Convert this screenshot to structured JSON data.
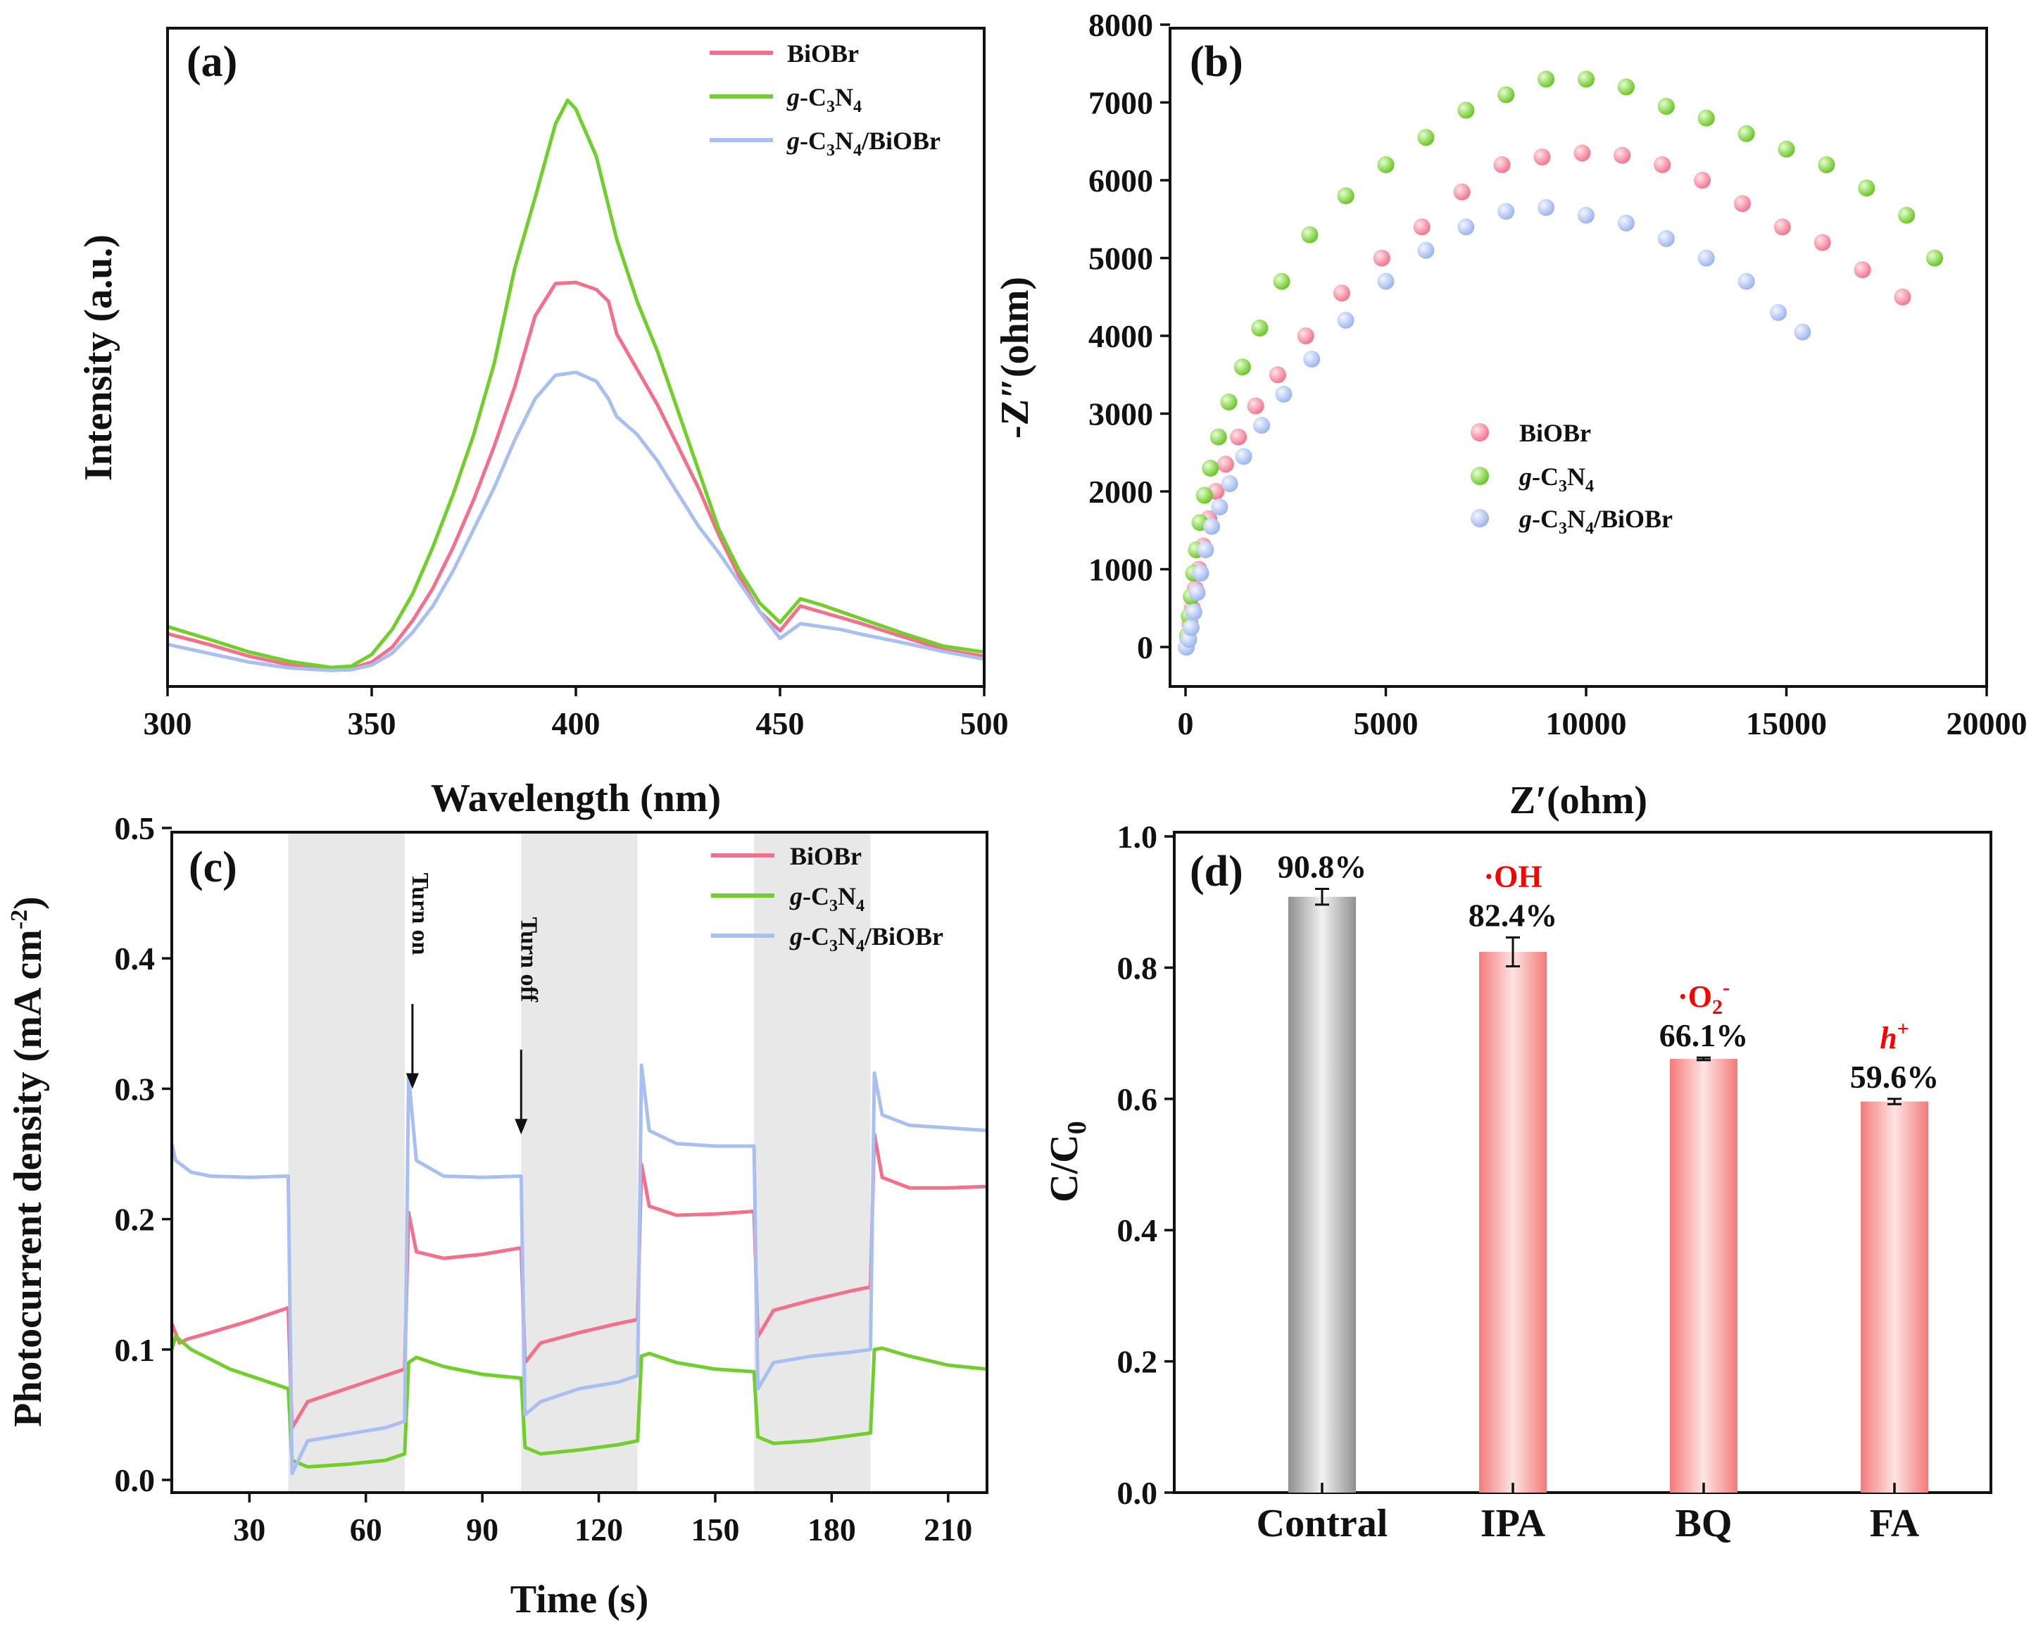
{
  "colors": {
    "biobr": "#f36f8a",
    "gc3n4": "#71cf2b",
    "composite": "#a9bff2",
    "scavenger_label": "#ff0000",
    "light_off_band": "#e8e8e8"
  },
  "legend": {
    "biobr": "BiOBr",
    "gc3n4_prefix": "g",
    "gc3n4_main": "-C",
    "gc3n4_sub1": "3",
    "gc3n4_n": "N",
    "gc3n4_sub2": "4",
    "composite_suffix": "/BiOBr"
  },
  "chart_data": [
    {
      "id": "a",
      "type": "line",
      "panel_label": "(a)",
      "xlabel": "Wavelength (nm)",
      "ylabel": "Intensity (a.u.)",
      "xlim": [
        300,
        500
      ],
      "ylim": [
        0,
        1
      ],
      "x_ticks": [
        "300",
        "350",
        "400",
        "450",
        "500"
      ],
      "y_ticks_shown": false,
      "legend_position": "top-right",
      "series": [
        {
          "name": "BiOBr",
          "x": [
            300,
            310,
            320,
            330,
            340,
            345,
            350,
            355,
            360,
            365,
            370,
            375,
            380,
            385,
            390,
            395,
            400,
            405,
            408,
            410,
            415,
            420,
            425,
            430,
            435,
            440,
            445,
            450,
            455,
            460,
            465,
            470,
            480,
            490,
            500
          ],
          "y": [
            0.063,
            0.045,
            0.025,
            0.01,
            0.003,
            0.004,
            0.015,
            0.04,
            0.085,
            0.14,
            0.21,
            0.29,
            0.38,
            0.48,
            0.6,
            0.655,
            0.657,
            0.645,
            0.625,
            0.57,
            0.51,
            0.45,
            0.38,
            0.31,
            0.23,
            0.16,
            0.1,
            0.068,
            0.11,
            0.1,
            0.09,
            0.08,
            0.058,
            0.036,
            0.025
          ]
        },
        {
          "name": "g-C3N4",
          "x": [
            300,
            310,
            320,
            330,
            340,
            345,
            350,
            355,
            360,
            365,
            370,
            375,
            380,
            385,
            390,
            395,
            398,
            400,
            405,
            410,
            415,
            420,
            425,
            430,
            435,
            440,
            445,
            450,
            455,
            460,
            465,
            470,
            480,
            490,
            500
          ],
          "y": [
            0.075,
            0.054,
            0.032,
            0.016,
            0.006,
            0.008,
            0.028,
            0.07,
            0.13,
            0.21,
            0.3,
            0.4,
            0.52,
            0.68,
            0.8,
            0.925,
            0.965,
            0.95,
            0.87,
            0.73,
            0.625,
            0.54,
            0.44,
            0.34,
            0.24,
            0.17,
            0.115,
            0.082,
            0.122,
            0.112,
            0.1,
            0.088,
            0.064,
            0.042,
            0.032
          ]
        },
        {
          "name": "g-C3N4/BiOBr",
          "x": [
            300,
            310,
            320,
            330,
            340,
            345,
            350,
            355,
            360,
            365,
            370,
            375,
            380,
            385,
            390,
            395,
            400,
            405,
            408,
            410,
            415,
            420,
            425,
            430,
            435,
            440,
            445,
            450,
            455,
            460,
            465,
            470,
            480,
            490,
            500
          ],
          "y": [
            0.045,
            0.03,
            0.015,
            0.005,
            0.001,
            0.002,
            0.01,
            0.03,
            0.065,
            0.11,
            0.17,
            0.24,
            0.31,
            0.39,
            0.46,
            0.5,
            0.505,
            0.49,
            0.46,
            0.43,
            0.4,
            0.355,
            0.3,
            0.245,
            0.2,
            0.15,
            0.1,
            0.055,
            0.08,
            0.075,
            0.07,
            0.062,
            0.048,
            0.033,
            0.02
          ]
        }
      ]
    },
    {
      "id": "b",
      "type": "scatter",
      "panel_label": "(b)",
      "xlabel": "Z′(ohm)",
      "ylabel": "-Z″(ohm)",
      "xlim": [
        -500,
        20500
      ],
      "ylim": [
        -500,
        8000
      ],
      "x_ticks": [
        "0",
        "5000",
        "10000",
        "15000",
        "20000"
      ],
      "y_ticks": [
        "0",
        "1000",
        "2000",
        "3000",
        "4000",
        "5000",
        "6000",
        "7000",
        "8000"
      ],
      "legend_position": "center",
      "series": [
        {
          "name": "BiOBr",
          "x": [
            20,
            60,
            110,
            170,
            240,
            330,
            440,
            580,
            760,
            1000,
            1320,
            1750,
            2300,
            3000,
            3900,
            4900,
            5900,
            6900,
            7900,
            8900,
            9900,
            10900,
            11900,
            12900,
            13900,
            14900,
            15900,
            16900,
            17900
          ],
          "y": [
            0,
            100,
            300,
            500,
            750,
            1000,
            1300,
            1650,
            2000,
            2350,
            2700,
            3100,
            3500,
            4000,
            4550,
            5000,
            5400,
            5850,
            6200,
            6300,
            6350,
            6320,
            6200,
            6000,
            5700,
            5400,
            5200,
            4850,
            4500
          ]
        },
        {
          "name": "g-C3N4",
          "x": [
            20,
            50,
            90,
            140,
            200,
            270,
            360,
            470,
            620,
            820,
            1080,
            1420,
            1850,
            2400,
            3100,
            4000,
            5000,
            6000,
            7000,
            8000,
            9000,
            10000,
            11000,
            12000,
            13000,
            14000,
            15000,
            16000,
            17000,
            18000,
            18700
          ],
          "y": [
            0,
            150,
            400,
            650,
            950,
            1250,
            1600,
            1950,
            2300,
            2700,
            3150,
            3600,
            4100,
            4700,
            5300,
            5800,
            6200,
            6550,
            6900,
            7100,
            7300,
            7300,
            7200,
            6950,
            6800,
            6600,
            6400,
            6200,
            5900,
            5550,
            5000
          ]
        },
        {
          "name": "g-C3N4/BiOBr",
          "x": [
            20,
            80,
            140,
            210,
            290,
            380,
            500,
            650,
            850,
            1100,
            1450,
            1900,
            2450,
            3150,
            4000,
            5000,
            6000,
            7000,
            8000,
            9000,
            10000,
            11000,
            12000,
            13000,
            14000,
            14800,
            15400
          ],
          "y": [
            0,
            100,
            250,
            450,
            700,
            950,
            1250,
            1550,
            1800,
            2100,
            2450,
            2850,
            3250,
            3700,
            4200,
            4700,
            5100,
            5400,
            5600,
            5650,
            5550,
            5450,
            5250,
            5000,
            4700,
            4300,
            4050
          ]
        }
      ]
    },
    {
      "id": "c",
      "type": "line",
      "panel_label": "(c)",
      "xlabel": "Time (s)",
      "ylabel": "Photocurrent density (mA cm",
      "ylabel_sup": "-2",
      "ylabel_close": ")",
      "xlim": [
        10,
        220
      ],
      "ylim": [
        -0.01,
        0.5
      ],
      "x_ticks": [
        "30",
        "60",
        "90",
        "120",
        "150",
        "180",
        "210"
      ],
      "y_ticks": [
        "0.0",
        "0.1",
        "0.2",
        "0.3",
        "0.4",
        "0.5"
      ],
      "dark_intervals": [
        [
          40,
          70
        ],
        [
          100,
          130
        ],
        [
          160,
          190
        ]
      ],
      "annotations": [
        {
          "text": "Turn on",
          "x": 72,
          "arrow_from": 0.365,
          "arrow_to": 0.3
        },
        {
          "text": "Turn off",
          "x": 100,
          "arrow_from": 0.33,
          "arrow_to": 0.265
        }
      ],
      "legend_position": "top-right",
      "series": [
        {
          "name": "BiOBr",
          "segments": [
            {
              "x": [
                10,
                12,
                14,
                20,
                30,
                40
              ],
              "y": [
                0.12,
                0.105,
                0.108,
                0.113,
                0.122,
                0.132
              ]
            },
            {
              "x": [
                40,
                41,
                45,
                55,
                65,
                70
              ],
              "y": [
                0.132,
                0.04,
                0.06,
                0.07,
                0.08,
                0.085
              ]
            },
            {
              "x": [
                70,
                71,
                73,
                80,
                90,
                100
              ],
              "y": [
                0.085,
                0.205,
                0.175,
                0.17,
                0.173,
                0.178
              ]
            },
            {
              "x": [
                100,
                101,
                105,
                115,
                125,
                130
              ],
              "y": [
                0.178,
                0.09,
                0.105,
                0.113,
                0.12,
                0.123
              ]
            },
            {
              "x": [
                130,
                131,
                133,
                140,
                150,
                160
              ],
              "y": [
                0.123,
                0.242,
                0.21,
                0.203,
                0.204,
                0.206
              ]
            },
            {
              "x": [
                160,
                161,
                165,
                175,
                185,
                190
              ],
              "y": [
                0.206,
                0.11,
                0.13,
                0.138,
                0.145,
                0.148
              ]
            },
            {
              "x": [
                190,
                191,
                193,
                200,
                210,
                220
              ],
              "y": [
                0.148,
                0.265,
                0.232,
                0.224,
                0.224,
                0.225
              ]
            }
          ]
        },
        {
          "name": "g-C3N4",
          "segments": [
            {
              "x": [
                10,
                11,
                15,
                25,
                35,
                40
              ],
              "y": [
                0.1,
                0.11,
                0.1,
                0.085,
                0.075,
                0.07
              ]
            },
            {
              "x": [
                40,
                41,
                45,
                55,
                65,
                70
              ],
              "y": [
                0.07,
                0.015,
                0.01,
                0.012,
                0.015,
                0.02
              ]
            },
            {
              "x": [
                70,
                71,
                73,
                80,
                90,
                100
              ],
              "y": [
                0.02,
                0.09,
                0.094,
                0.087,
                0.081,
                0.078
              ]
            },
            {
              "x": [
                100,
                101,
                105,
                115,
                125,
                130
              ],
              "y": [
                0.078,
                0.025,
                0.02,
                0.023,
                0.027,
                0.03
              ]
            },
            {
              "x": [
                130,
                131,
                133,
                140,
                150,
                160
              ],
              "y": [
                0.03,
                0.095,
                0.097,
                0.09,
                0.085,
                0.083
              ]
            },
            {
              "x": [
                160,
                161,
                165,
                175,
                185,
                190
              ],
              "y": [
                0.083,
                0.033,
                0.028,
                0.03,
                0.034,
                0.036
              ]
            },
            {
              "x": [
                190,
                191,
                193,
                200,
                210,
                220
              ],
              "y": [
                0.036,
                0.1,
                0.101,
                0.095,
                0.088,
                0.085
              ]
            }
          ]
        },
        {
          "name": "g-C3N4/BiOBr",
          "segments": [
            {
              "x": [
                10,
                11,
                15,
                20,
                30,
                40
              ],
              "y": [
                0.258,
                0.245,
                0.236,
                0.233,
                0.232,
                0.233
              ]
            },
            {
              "x": [
                40,
                41,
                45,
                55,
                65,
                70
              ],
              "y": [
                0.233,
                0.005,
                0.03,
                0.035,
                0.04,
                0.045
              ]
            },
            {
              "x": [
                70,
                71,
                73,
                80,
                90,
                100
              ],
              "y": [
                0.045,
                0.31,
                0.245,
                0.233,
                0.232,
                0.233
              ]
            },
            {
              "x": [
                100,
                101,
                105,
                115,
                125,
                130
              ],
              "y": [
                0.233,
                0.05,
                0.06,
                0.07,
                0.075,
                0.08
              ]
            },
            {
              "x": [
                130,
                131,
                133,
                140,
                150,
                160
              ],
              "y": [
                0.08,
                0.318,
                0.268,
                0.258,
                0.256,
                0.256
              ]
            },
            {
              "x": [
                160,
                161,
                165,
                175,
                185,
                190
              ],
              "y": [
                0.256,
                0.07,
                0.09,
                0.095,
                0.098,
                0.1
              ]
            },
            {
              "x": [
                190,
                191,
                193,
                200,
                210,
                220
              ],
              "y": [
                0.1,
                0.312,
                0.28,
                0.272,
                0.27,
                0.268
              ]
            }
          ]
        }
      ]
    },
    {
      "id": "d",
      "type": "bar",
      "panel_label": "(d)",
      "xlabel": "",
      "ylabel_main": "C/C",
      "ylabel_sub": "0",
      "ylim": [
        0,
        1.0
      ],
      "y_ticks": [
        "0.0",
        "0.2",
        "0.4",
        "0.6",
        "0.8",
        "1.0"
      ],
      "categories": [
        "Contral",
        "IPA",
        "BQ",
        "FA"
      ],
      "values": [
        0.908,
        0.824,
        0.661,
        0.596
      ],
      "errors": [
        0.012,
        0.022,
        0.002,
        0.004
      ],
      "value_labels": [
        "90.8%",
        "82.4%",
        "66.1%",
        "59.6%"
      ],
      "scavenged_species": [
        {
          "main": ""
        },
        {
          "main": "·OH"
        },
        {
          "main": "·O",
          "sub": "2",
          "sup": "-"
        },
        {
          "main": "h",
          "sup": "+"
        }
      ],
      "bar_colors": [
        "#9a9a9a",
        "#f78b8b",
        "#f78b8b",
        "#f78b8b"
      ]
    }
  ]
}
